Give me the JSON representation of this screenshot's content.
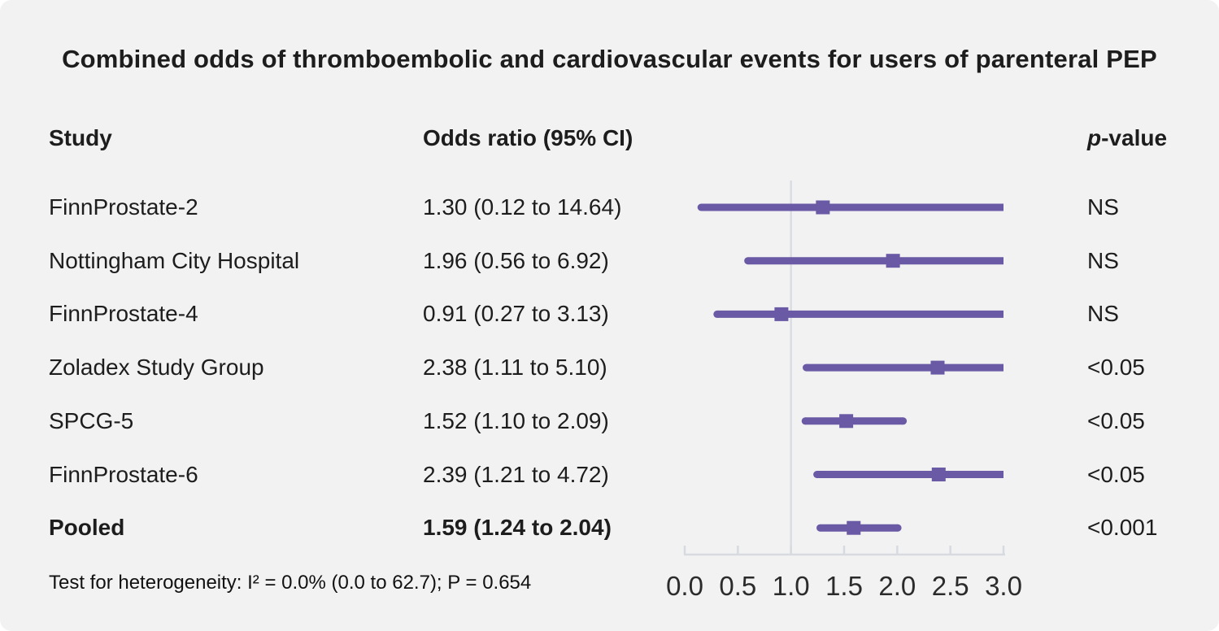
{
  "title": "Combined odds of thromboembolic and cardiovascular events for users of parenteral PEP",
  "columns": {
    "study": "Study",
    "odds_ratio": "Odds ratio (95% CI)",
    "p_italic": "p",
    "p_rest": "-value"
  },
  "footer": "Test for heterogeneity: I² = 0.0% (0.0 to 62.7); P = 0.654",
  "colors": {
    "background": "#f2f2f2",
    "accent_purple": "#6a59a5",
    "grid_gray": "#d7dbe0",
    "reference_line_gray": "#d9dde3",
    "text": "#1d1d1d"
  },
  "chart_data": {
    "type": "forest",
    "title": "Combined odds of thromboembolic and cardiovascular events for users of parenteral PEP",
    "x_axis": {
      "min": 0,
      "max": 3,
      "tick_values": [
        0,
        0.5,
        1,
        1.5,
        2,
        2.5,
        3
      ],
      "tick_labels": [
        "0.0",
        "0.5",
        "1.0",
        "1.5",
        "2.0",
        "2.5",
        "3.0"
      ],
      "reference_line": 1.0,
      "clip_max": 3.0
    },
    "rows": [
      {
        "study": "FinnProstate-2",
        "or": 1.3,
        "ci_low": 0.12,
        "ci_high": 14.64,
        "or_text": "1.30 (0.12 to 14.64)",
        "p_value": "NS",
        "bold": false
      },
      {
        "study": "Nottingham City Hospital",
        "or": 1.96,
        "ci_low": 0.56,
        "ci_high": 6.92,
        "or_text": "1.96 (0.56 to 6.92)",
        "p_value": "NS",
        "bold": false
      },
      {
        "study": "FinnProstate-4",
        "or": 0.91,
        "ci_low": 0.27,
        "ci_high": 3.13,
        "or_text": "0.91 (0.27 to 3.13)",
        "p_value": "NS",
        "bold": false
      },
      {
        "study": "Zoladex Study Group",
        "or": 2.38,
        "ci_low": 1.11,
        "ci_high": 5.1,
        "or_text": "2.38 (1.11 to 5.10)",
        "p_value": "<0.05",
        "bold": false
      },
      {
        "study": "SPCG-5",
        "or": 1.52,
        "ci_low": 1.1,
        "ci_high": 2.09,
        "or_text": "1.52 (1.10 to 2.09)",
        "p_value": "<0.05",
        "bold": false
      },
      {
        "study": "FinnProstate-6",
        "or": 2.39,
        "ci_low": 1.21,
        "ci_high": 4.72,
        "or_text": "2.39 (1.21 to 4.72)",
        "p_value": "<0.05",
        "bold": false
      },
      {
        "study": "Pooled",
        "or": 1.59,
        "ci_low": 1.24,
        "ci_high": 2.04,
        "or_text": "1.59 (1.24 to 2.04)",
        "p_value": "<0.001",
        "bold": true
      }
    ],
    "heterogeneity_note": "Test for heterogeneity: I² = 0.0% (0.0 to 62.7); P = 0.654"
  }
}
